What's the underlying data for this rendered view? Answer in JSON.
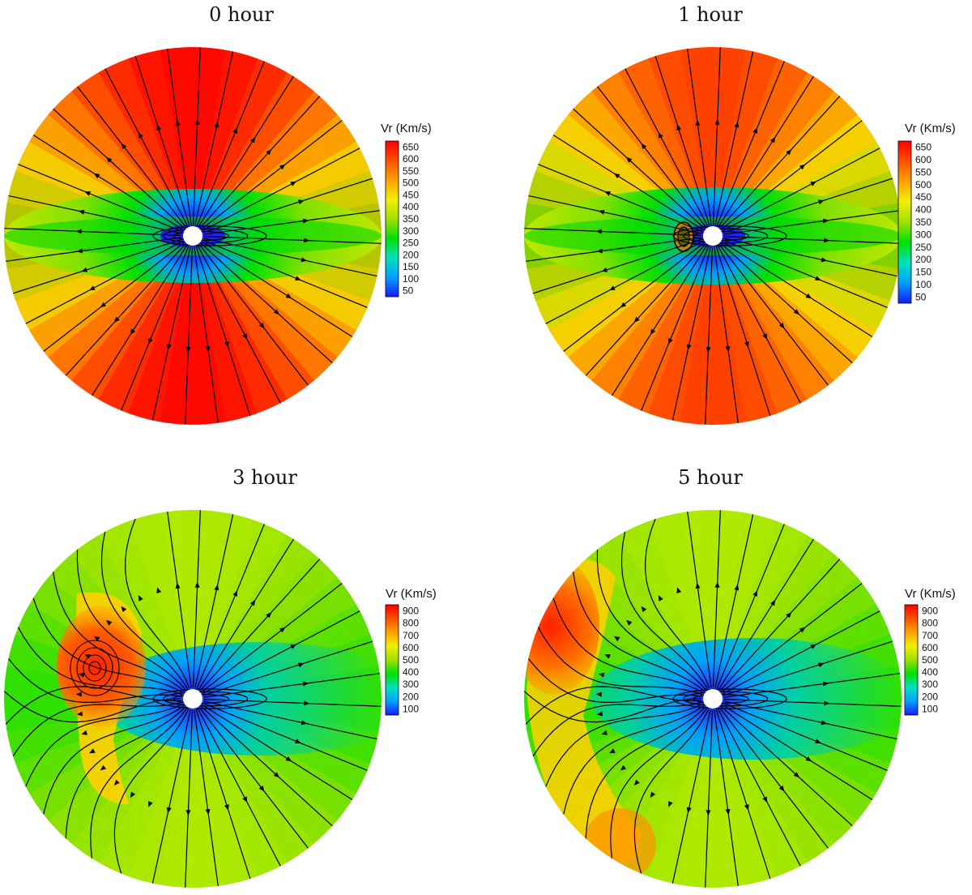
{
  "colors": {
    "stops": [
      "#1a1aff",
      "#00a0ff",
      "#00e0c0",
      "#00e000",
      "#a0e000",
      "#f0f000",
      "#ffa000",
      "#ff5000",
      "#ff0000"
    ],
    "streamline": "#000000",
    "sun": "#ffffff"
  },
  "chart_data": [
    {
      "type": "heatmap",
      "title": "0 hour",
      "legend": {
        "title": "Vr (Km/s)",
        "ticks": [
          "650",
          "600",
          "550",
          "500",
          "450",
          "400",
          "350",
          "300",
          "250",
          "200",
          "150",
          "100",
          "50"
        ],
        "range": [
          50,
          650
        ],
        "placement": "right"
      },
      "field": {
        "v_min": 50,
        "v_equator": 350,
        "v_pole": 650
      }
    },
    {
      "type": "heatmap",
      "title": "1 hour",
      "legend": {
        "title": "Vr (Km/s)",
        "ticks": [
          "650",
          "600",
          "550",
          "500",
          "450",
          "400",
          "350",
          "300",
          "250",
          "200",
          "150",
          "100",
          "50"
        ],
        "range": [
          50,
          650
        ],
        "placement": "right"
      },
      "field": {
        "v_min": 50,
        "v_equator": 320,
        "v_pole": 600
      }
    },
    {
      "type": "heatmap",
      "title": "3 hour",
      "legend": {
        "title": "Vr (Km/s)",
        "ticks": [
          "900",
          "800",
          "700",
          "600",
          "500",
          "400",
          "300",
          "200",
          "100"
        ],
        "range": [
          100,
          900
        ],
        "placement": "right"
      },
      "field": {
        "v_min": 100,
        "v_equator": 400,
        "v_pole": 600
      }
    },
    {
      "type": "heatmap",
      "title": "5 hour",
      "legend": {
        "title": "Vr (Km/s)",
        "ticks": [
          "900",
          "800",
          "700",
          "600",
          "500",
          "400",
          "300",
          "200",
          "100"
        ],
        "range": [
          100,
          900
        ],
        "placement": "right"
      },
      "field": {
        "v_min": 100,
        "v_equator": 400,
        "v_pole": 600
      }
    }
  ]
}
